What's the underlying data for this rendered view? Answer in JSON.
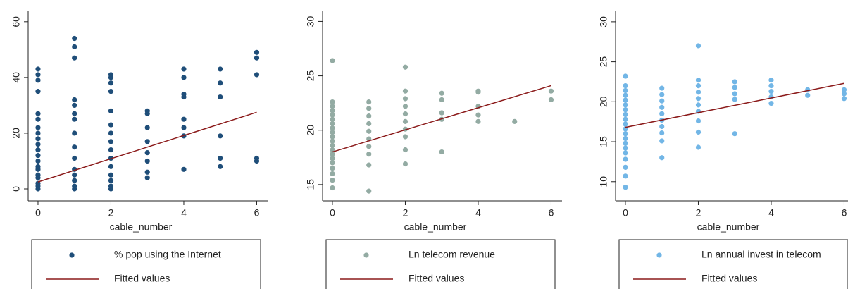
{
  "chart_data": [
    {
      "type": "scatter",
      "xlabel": "cable_number",
      "xlim": [
        -0.27,
        6.3
      ],
      "xticks": [
        0,
        2,
        4,
        6
      ],
      "ylim": [
        -4.3,
        64
      ],
      "yticks": [
        0,
        20,
        40,
        60
      ],
      "legend": "bottom",
      "series": [
        {
          "name": "% pop using the Internet",
          "color": "#1f4e79",
          "kind": "markers",
          "x": [
            0,
            0,
            0,
            0,
            0,
            0,
            0,
            0,
            0,
            0,
            0,
            0,
            0,
            0,
            0,
            0,
            0,
            0,
            0,
            0,
            1,
            1,
            1,
            1,
            1,
            1,
            1,
            1,
            1,
            1,
            1,
            1,
            1,
            1,
            1,
            2,
            2,
            2,
            2,
            2,
            2,
            2,
            2,
            2,
            2,
            2,
            2,
            2,
            2,
            2,
            3,
            3,
            3,
            3,
            3,
            3,
            3,
            3,
            4,
            4,
            4,
            4,
            4,
            4,
            4,
            4,
            5,
            5,
            5,
            5,
            5,
            5,
            6,
            6,
            6,
            6,
            6
          ],
          "values": [
            43,
            41,
            39,
            35,
            27,
            25,
            22,
            20,
            18,
            16,
            14,
            12,
            10,
            8,
            7,
            5,
            4,
            2,
            1,
            0,
            54,
            51,
            47,
            32,
            30,
            27,
            25,
            20,
            15,
            11,
            7,
            5,
            3,
            1,
            0,
            41,
            40,
            38,
            35,
            28,
            23,
            20,
            17,
            14,
            11,
            8,
            5,
            3,
            1,
            0,
            28,
            27,
            22,
            17,
            13,
            10,
            6,
            4,
            43,
            40,
            34,
            33,
            25,
            22,
            19,
            7,
            43,
            38,
            33,
            19,
            11,
            8,
            49,
            47,
            41,
            11,
            10
          ]
        },
        {
          "name": "Fitted values",
          "color": "#8b1a1a",
          "kind": "line",
          "x": [
            0,
            6
          ],
          "values": [
            2.5,
            27.5
          ]
        }
      ]
    },
    {
      "type": "scatter",
      "xlabel": "cable_number",
      "xlim": [
        -0.27,
        6.3
      ],
      "xticks": [
        0,
        2,
        4,
        6
      ],
      "ylim": [
        13.5,
        31
      ],
      "yticks": [
        15,
        20,
        25,
        30
      ],
      "legend": "bottom",
      "series": [
        {
          "name": "Ln telecom revenue",
          "color": "#93aba3",
          "kind": "markers",
          "x": [
            0,
            0,
            0,
            0,
            0,
            0,
            0,
            0,
            0,
            0,
            0,
            0,
            0,
            0,
            0,
            0,
            0,
            0,
            0,
            0,
            1,
            1,
            1,
            1,
            1,
            1,
            1,
            1,
            1,
            1,
            2,
            2,
            2,
            2,
            2,
            2,
            2,
            2,
            2,
            2,
            3,
            3,
            3,
            3,
            3,
            4,
            4,
            4,
            4,
            4,
            5,
            6,
            6
          ],
          "values": [
            26.4,
            22.6,
            22.2,
            21.8,
            21.4,
            21,
            20.6,
            20.2,
            19.8,
            19.4,
            19,
            18.6,
            18.2,
            17.8,
            17.4,
            17,
            16.5,
            16,
            15.4,
            14.7,
            22.6,
            22,
            21.3,
            20.6,
            19.9,
            19.2,
            18.5,
            17.8,
            16.8,
            14.4,
            25.8,
            23.6,
            22.9,
            22.2,
            21.5,
            20.8,
            20.1,
            19.4,
            18.2,
            16.9,
            23.4,
            22.8,
            21.6,
            21,
            18,
            23.6,
            23.5,
            22.2,
            21.4,
            20.8,
            20.8,
            23.6,
            22.8
          ]
        },
        {
          "name": "Fitted values",
          "color": "#8b1a1a",
          "kind": "line",
          "x": [
            0,
            6
          ],
          "values": [
            18,
            24.1
          ]
        }
      ]
    },
    {
      "type": "scatter",
      "xlabel": "cable_number",
      "xlim": [
        -0.27,
        6.3
      ],
      "xticks": [
        0,
        2,
        4,
        6
      ],
      "ylim": [
        7.6,
        31.4
      ],
      "yticks": [
        10,
        15,
        20,
        25,
        30
      ],
      "legend": "bottom",
      "series": [
        {
          "name": "Ln annual invest in telecom",
          "color": "#72b6e6",
          "kind": "markers",
          "x": [
            0,
            0,
            0,
            0,
            0,
            0,
            0,
            0,
            0,
            0,
            0,
            0,
            0,
            0,
            0,
            0,
            0,
            0,
            0,
            0,
            1,
            1,
            1,
            1,
            1,
            1,
            1,
            1,
            1,
            1,
            2,
            2,
            2,
            2,
            2,
            2,
            2,
            2,
            2,
            2,
            3,
            3,
            3,
            3,
            3,
            4,
            4,
            4,
            4,
            4,
            5,
            5,
            6,
            6,
            6
          ],
          "values": [
            23.2,
            22,
            21.4,
            20.8,
            20.2,
            19.6,
            19,
            18.4,
            17.8,
            17.2,
            16.6,
            16,
            15.4,
            14.8,
            14.2,
            13.6,
            12.8,
            11.8,
            10.7,
            9.3,
            21.7,
            20.9,
            20.1,
            19.3,
            18.5,
            17.7,
            16.9,
            16.1,
            15.1,
            13,
            27,
            22.7,
            22,
            21.2,
            20.4,
            19.6,
            18.8,
            17.6,
            16.2,
            14.3,
            22.5,
            21.8,
            21,
            20.3,
            16,
            22.7,
            22,
            21.3,
            20.6,
            19.8,
            21.5,
            20.8,
            21.5,
            21,
            20.4
          ]
        },
        {
          "name": "Fitted values",
          "color": "#8b1a1a",
          "kind": "line",
          "x": [
            0,
            6
          ],
          "values": [
            16.8,
            22.3
          ]
        }
      ]
    }
  ]
}
